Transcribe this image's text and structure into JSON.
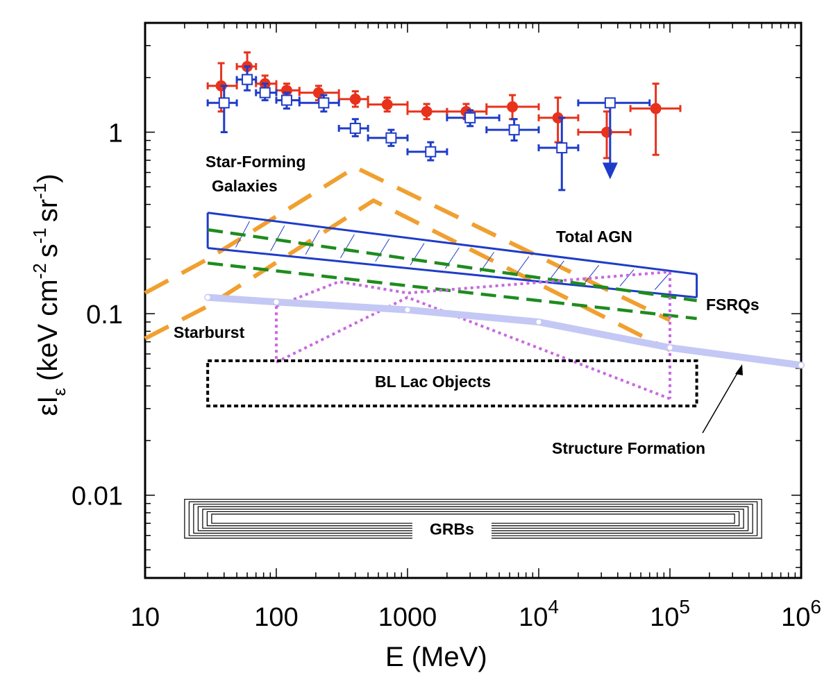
{
  "chart_data": {
    "type": "scatter",
    "xlabel": "E (MeV)",
    "ylabel_main": "εI",
    "ylabel_sub": "ε",
    "ylabel_units": "(keV cm",
    "ylabel_units_2": "s",
    "ylabel_units_3": "sr",
    "x_scale": "log",
    "y_scale": "log",
    "xlim": [
      10,
      1000000
    ],
    "ylim": [
      0.0035,
      4.0
    ],
    "x_ticks": [
      {
        "value": 10,
        "base": "10",
        "exp": ""
      },
      {
        "value": 100,
        "base": "100",
        "exp": ""
      },
      {
        "value": 1000,
        "base": "1000",
        "exp": ""
      },
      {
        "value": 10000,
        "base": "10",
        "exp": "4"
      },
      {
        "value": 100000,
        "base": "10",
        "exp": "5"
      },
      {
        "value": 1000000,
        "base": "10",
        "exp": "6"
      }
    ],
    "y_ticks": [
      {
        "value": 1,
        "label": "1"
      },
      {
        "value": 0.1,
        "label": "0.1"
      },
      {
        "value": 0.01,
        "label": "0.01"
      }
    ],
    "grid": false,
    "legend": "none",
    "data_series": [
      {
        "color": "#e8321c",
        "marker": "filled-circle",
        "points": [
          {
            "x": 38,
            "y": 1.8,
            "xlo": 30,
            "xhi": 50,
            "ylo": 1.3,
            "yhi": 2.4
          },
          {
            "x": 60,
            "y": 2.3,
            "xlo": 50,
            "xhi": 70,
            "ylo": 2.0,
            "yhi": 2.75
          },
          {
            "x": 82,
            "y": 1.85,
            "xlo": 70,
            "xhi": 100,
            "ylo": 1.65,
            "yhi": 2.05
          },
          {
            "x": 120,
            "y": 1.7,
            "xlo": 100,
            "xhi": 150,
            "ylo": 1.55,
            "yhi": 1.85
          },
          {
            "x": 210,
            "y": 1.65,
            "xlo": 150,
            "xhi": 300,
            "ylo": 1.5,
            "yhi": 1.8
          },
          {
            "x": 400,
            "y": 1.52,
            "xlo": 300,
            "xhi": 500,
            "ylo": 1.38,
            "yhi": 1.68
          },
          {
            "x": 700,
            "y": 1.42,
            "xlo": 500,
            "xhi": 1000,
            "ylo": 1.3,
            "yhi": 1.55
          },
          {
            "x": 1400,
            "y": 1.3,
            "xlo": 1000,
            "xhi": 2000,
            "ylo": 1.18,
            "yhi": 1.43
          },
          {
            "x": 2800,
            "y": 1.3,
            "xlo": 2000,
            "xhi": 4000,
            "ylo": 1.18,
            "yhi": 1.43
          },
          {
            "x": 6300,
            "y": 1.38,
            "xlo": 4000,
            "xhi": 10000,
            "ylo": 1.18,
            "yhi": 1.6
          },
          {
            "x": 14000,
            "y": 1.2,
            "xlo": 10000,
            "xhi": 20000,
            "ylo": 0.88,
            "yhi": 1.55
          },
          {
            "x": 33000,
            "y": 1.0,
            "xlo": 20000,
            "xhi": 50000,
            "ylo": 0.72,
            "yhi": 1.3
          },
          {
            "x": 78000,
            "y": 1.35,
            "xlo": 50000,
            "xhi": 120000,
            "ylo": 0.75,
            "yhi": 1.85
          }
        ]
      },
      {
        "color": "#1e3cc8",
        "marker": "open-square",
        "points": [
          {
            "x": 40,
            "y": 1.45,
            "xlo": 30,
            "xhi": 50,
            "ylo": 1.0,
            "yhi": 1.8
          },
          {
            "x": 60,
            "y": 1.95,
            "xlo": 50,
            "xhi": 70,
            "ylo": 1.7,
            "yhi": 2.3
          },
          {
            "x": 82,
            "y": 1.65,
            "xlo": 70,
            "xhi": 100,
            "ylo": 1.5,
            "yhi": 1.85
          },
          {
            "x": 120,
            "y": 1.5,
            "xlo": 100,
            "xhi": 150,
            "ylo": 1.35,
            "yhi": 1.65
          },
          {
            "x": 230,
            "y": 1.45,
            "xlo": 150,
            "xhi": 300,
            "ylo": 1.3,
            "yhi": 1.6
          },
          {
            "x": 400,
            "y": 1.05,
            "xlo": 300,
            "xhi": 500,
            "ylo": 0.95,
            "yhi": 1.18
          },
          {
            "x": 750,
            "y": 0.93,
            "xlo": 500,
            "xhi": 1000,
            "ylo": 0.84,
            "yhi": 1.03
          },
          {
            "x": 1500,
            "y": 0.78,
            "xlo": 1000,
            "xhi": 2000,
            "ylo": 0.7,
            "yhi": 0.88
          },
          {
            "x": 3000,
            "y": 1.2,
            "xlo": 2000,
            "xhi": 5000,
            "ylo": 1.08,
            "yhi": 1.32
          },
          {
            "x": 6500,
            "y": 1.03,
            "xlo": 4000,
            "xhi": 10000,
            "ylo": 0.9,
            "yhi": 1.18
          },
          {
            "x": 15000,
            "y": 0.82,
            "xlo": 10000,
            "xhi": 20000,
            "ylo": 0.48,
            "yhi": 1.2
          },
          {
            "x": 35000,
            "y": 1.45,
            "xlo": 20000,
            "xhi": 70000,
            "ylo": 1.45,
            "yhi": 1.45,
            "upper_limit": true,
            "arrow_to": 0.55
          }
        ]
      }
    ],
    "models": [
      {
        "label": "Star-Forming Galaxies",
        "color": "#f0a030",
        "style": "long-dash",
        "upper": [
          [
            10,
            0.13
          ],
          [
            30,
            0.2
          ],
          [
            400,
            0.64
          ],
          [
            100000,
            0.092
          ]
        ],
        "lower": [
          [
            10,
            0.073
          ],
          [
            30,
            0.11
          ],
          [
            550,
            0.42
          ],
          [
            100000,
            0.063
          ]
        ]
      },
      {
        "label": "Total AGN",
        "color": "#1e3cc8",
        "style": "solid-band",
        "upper": [
          [
            30,
            0.36
          ],
          [
            160000,
            0.165
          ]
        ],
        "lower": [
          [
            30,
            0.23
          ],
          [
            160000,
            0.123
          ]
        ]
      },
      {
        "label": "FSRQs",
        "color": "#1e8c1e",
        "style": "dashed",
        "upper": [
          [
            30,
            0.29
          ],
          [
            160000,
            0.118
          ]
        ],
        "lower": [
          [
            30,
            0.19
          ],
          [
            160000,
            0.094
          ]
        ]
      },
      {
        "label": "Starburst",
        "color": "#c868e0",
        "style": "dotted",
        "upper": [
          [
            100,
            0.11
          ],
          [
            300,
            0.15
          ],
          [
            1000,
            0.13
          ],
          [
            100000,
            0.17
          ]
        ],
        "lower": [
          [
            100,
            0.054
          ],
          [
            1000,
            0.123
          ],
          [
            100000,
            0.034
          ]
        ]
      },
      {
        "label": "Structure Formation",
        "color": "#c4c8f4",
        "style": "thick-band",
        "points": [
          [
            30,
            0.123
          ],
          [
            100,
            0.116
          ],
          [
            1000,
            0.105
          ],
          [
            10000,
            0.09
          ],
          [
            100000,
            0.065
          ],
          [
            1000000,
            0.052
          ]
        ]
      },
      {
        "label": "BL Lac Objects",
        "color": "#000000",
        "style": "dotted-box",
        "x": [
          30,
          160000
        ],
        "y": [
          0.031,
          0.055
        ]
      },
      {
        "label": "GRBs",
        "color": "#000000",
        "style": "nested-boxes",
        "x": [
          20,
          500000
        ],
        "y": [
          0.0058,
          0.0095
        ]
      }
    ]
  },
  "annotations": {
    "star_forming_line1": "Star-Forming",
    "star_forming_line2": "Galaxies",
    "total_agn": "Total AGN",
    "fsrqs": "FSRQs",
    "starburst": "Starburst",
    "bl_lac": "BL Lac Objects",
    "structure_formation": "Structure Formation",
    "grbs": "GRBs"
  }
}
